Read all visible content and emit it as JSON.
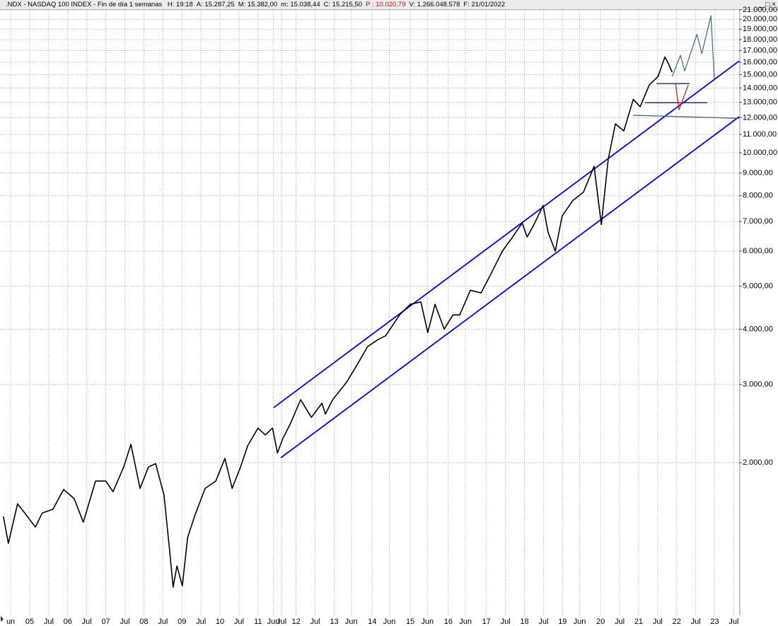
{
  "chart_data": {
    "type": "line",
    "title": ".NDX - NASDAQ 100 INDEX - Fin de día 1 semanas",
    "header_fields": [
      {
        "text": "H: 19:18"
      },
      {
        "text": "A: 15.287,25"
      },
      {
        "text": "M: 15.382,00"
      },
      {
        "text": "m: 15.038,44"
      },
      {
        "text": "C: 15.215,50"
      },
      {
        "text": "P : 10.020,79",
        "color": "#e00000"
      },
      {
        "text": "V: 1.266.048.578"
      },
      {
        "text": "F: 21/01/2022"
      }
    ],
    "log_scale": true,
    "grid": true,
    "color": "#000000",
    "x": [
      2004.31,
      2004.44,
      2004.68,
      2004.87,
      2005.15,
      2005.33,
      2005.61,
      2005.89,
      2006.17,
      2006.41,
      2006.73,
      2007.0,
      2007.19,
      2007.47,
      2007.66,
      2007.9,
      2008.12,
      2008.31,
      2008.53,
      2008.68,
      2008.77,
      2008.87,
      2009.01,
      2009.15,
      2009.33,
      2009.61,
      2009.89,
      2010.13,
      2010.32,
      2010.54,
      2010.73,
      2011.0,
      2011.19,
      2011.38,
      2011.51,
      2011.65,
      2011.84,
      2012.12,
      2012.4,
      2012.68,
      2012.77,
      2012.96,
      2013.33,
      2013.61,
      2013.88,
      2014.16,
      2014.35,
      2014.72,
      2015.0,
      2015.28,
      2015.46,
      2015.65,
      2015.89,
      2016.12,
      2016.3,
      2016.58,
      2016.86,
      2017.14,
      2017.42,
      2017.69,
      2017.94,
      2018.07,
      2018.25,
      2018.49,
      2018.62,
      2018.81,
      2018.99,
      2019.27,
      2019.55,
      2019.83,
      2020.02,
      2020.2,
      2020.39,
      2020.61,
      2020.86,
      2021.04,
      2021.28,
      2021.51,
      2021.69,
      2021.78,
      2021.88
    ],
    "values": [
      1513,
      1316,
      1616,
      1540,
      1432,
      1540,
      1570,
      1740,
      1660,
      1468,
      1818,
      1818,
      1720,
      1956,
      2200,
      1750,
      1956,
      1990,
      1690,
      1260,
      1048,
      1170,
      1055,
      1356,
      1513,
      1750,
      1818,
      2045,
      1750,
      1956,
      2185,
      2394,
      2310,
      2394,
      2104,
      2266,
      2438,
      2774,
      2530,
      2724,
      2574,
      2774,
      3040,
      3333,
      3656,
      3794,
      3865,
      4308,
      4552,
      4608,
      3930,
      4552,
      4000,
      4308,
      4308,
      4897,
      4830,
      5372,
      6000,
      6457,
      6946,
      6457,
      6890,
      7606,
      6620,
      6000,
      7200,
      7800,
      8150,
      9320,
      6890,
      9660,
      11620,
      11200,
      13200,
      12700,
      14220,
      14860,
      16450,
      15900,
      15200
    ],
    "lines": [
      {
        "color": "#0000ee",
        "x": [
          2011.41,
          2023.64
        ],
        "values": [
          2662,
          16100
        ]
      },
      {
        "color": "#0000ee",
        "x": [
          2011.6,
          2023.64
        ],
        "values": [
          2052,
          12060
        ]
      },
      {
        "color": "#1a2660",
        "x": [
          2021.47,
          2022.34
        ],
        "values": [
          14320,
          14320
        ]
      },
      {
        "color": "#1a2660",
        "x": [
          2021.17,
          2022.81
        ],
        "values": [
          12970,
          12970
        ]
      },
      {
        "color": "#3a5a8a",
        "x": [
          2020.85,
          2023.64
        ],
        "values": [
          12150,
          11960
        ]
      },
      {
        "color": "#e02020",
        "x": [
          2021.97,
          2022.06,
          2022.3
        ],
        "values": [
          14320,
          12500,
          14200
        ]
      },
      {
        "color": "#3f6f9f",
        "x": [
          2021.88,
          2022.1,
          2022.21,
          2022.53,
          2022.66,
          2022.9,
          2022.99
        ],
        "values": [
          14860,
          16580,
          15300,
          18500,
          16750,
          20380,
          14640
        ]
      }
    ],
    "xlim": [
      2004.22,
      2023.64
    ],
    "ylim": [
      905,
      21000
    ],
    "xticks": [
      {
        "value": 2004.5,
        "label": "un"
      },
      {
        "value": 2005,
        "label": "05"
      },
      {
        "value": 2005.5,
        "label": "Jul"
      },
      {
        "value": 2006,
        "label": "06"
      },
      {
        "value": 2006.5,
        "label": "Jul"
      },
      {
        "value": 2007,
        "label": "07"
      },
      {
        "value": 2007.5,
        "label": "Jul"
      },
      {
        "value": 2008,
        "label": "08"
      },
      {
        "value": 2008.5,
        "label": "Jul"
      },
      {
        "value": 2009,
        "label": "09"
      },
      {
        "value": 2009.5,
        "label": "Jul"
      },
      {
        "value": 2010,
        "label": "10"
      },
      {
        "value": 2010.5,
        "label": "Jul"
      },
      {
        "value": 2011,
        "label": "11"
      },
      {
        "value": 2011.4,
        "label": "Jun"
      },
      {
        "value": 2011.62,
        "label": "Jul"
      },
      {
        "value": 2012,
        "label": "12"
      },
      {
        "value": 2012.5,
        "label": "Jul"
      },
      {
        "value": 2013,
        "label": "13"
      },
      {
        "value": 2013.45,
        "label": "Jun"
      },
      {
        "value": 2014,
        "label": "14"
      },
      {
        "value": 2014.45,
        "label": "Jun"
      },
      {
        "value": 2015,
        "label": "15"
      },
      {
        "value": 2015.45,
        "label": "Jun"
      },
      {
        "value": 2016,
        "label": "16"
      },
      {
        "value": 2016.45,
        "label": "Jun"
      },
      {
        "value": 2017,
        "label": "17"
      },
      {
        "value": 2017.5,
        "label": "Jul"
      },
      {
        "value": 2018,
        "label": "18"
      },
      {
        "value": 2018.5,
        "label": "Jul"
      },
      {
        "value": 2019,
        "label": "19"
      },
      {
        "value": 2019.45,
        "label": "Jun"
      },
      {
        "value": 2020,
        "label": "20"
      },
      {
        "value": 2020.5,
        "label": "Jul"
      },
      {
        "value": 2021,
        "label": "21"
      },
      {
        "value": 2021.5,
        "label": "Jul"
      },
      {
        "value": 2022,
        "label": "22"
      },
      {
        "value": 2022.5,
        "label": "Jul"
      },
      {
        "value": 2023,
        "label": "23"
      },
      {
        "value": 2023.5,
        "label": "Jul"
      }
    ],
    "yticks": [
      {
        "value": 2000,
        "label": "2.000,00"
      },
      {
        "value": 3000,
        "label": "3.000,00"
      },
      {
        "value": 4000,
        "label": "4.000,00"
      },
      {
        "value": 5000,
        "label": "5.000,00"
      },
      {
        "value": 6000,
        "label": "6.000,00"
      },
      {
        "value": 7000,
        "label": "7.000,00"
      },
      {
        "value": 8000,
        "label": "8.000,00"
      },
      {
        "value": 9000,
        "label": "9.000,00"
      },
      {
        "value": 10000,
        "label": "10.000,00"
      },
      {
        "value": 11000,
        "label": "11.000,00"
      },
      {
        "value": 12000,
        "label": "12.000,00"
      },
      {
        "value": 13000,
        "label": "13.000,00"
      },
      {
        "value": 14000,
        "label": "14.000,00"
      },
      {
        "value": 15000,
        "label": "15.000,00"
      },
      {
        "value": 16000,
        "label": "16.000,00"
      },
      {
        "value": 17000,
        "label": "17.000,00"
      },
      {
        "value": 18000,
        "label": "18.000,00"
      },
      {
        "value": 19000,
        "label": "19.000,00"
      },
      {
        "value": 20000,
        "label": "20.000,00"
      },
      {
        "value": 21000,
        "label": "21.000,00"
      }
    ]
  }
}
